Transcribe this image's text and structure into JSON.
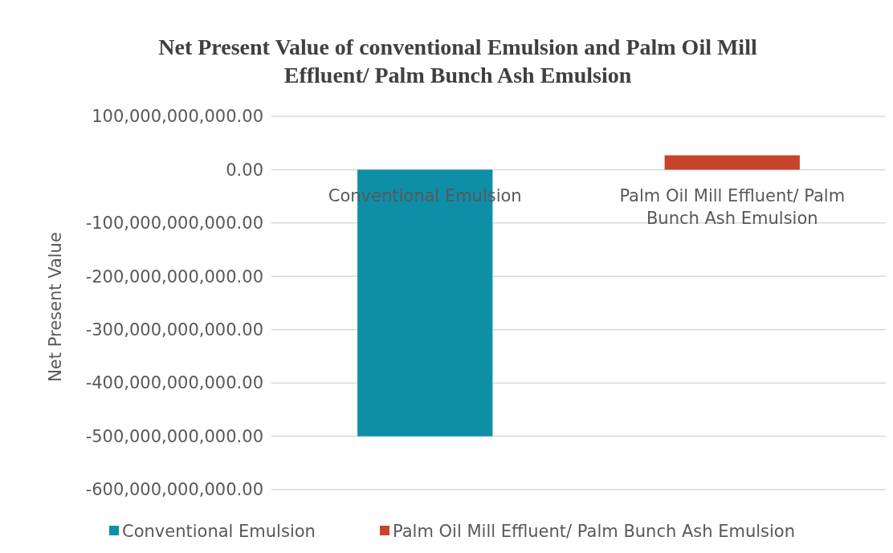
{
  "chart_data": {
    "type": "bar",
    "title": "Net Present Value of conventional Emulsion and Palm Oil Mill Effluent/ Palm Bunch Ash Emulsion",
    "ylabel": "Net Present Value",
    "categories": [
      "Conventional Emulsion",
      "Palm Oil Mill Effluent/ Palm Bunch Ash Emulsion"
    ],
    "series": [
      {
        "name": "Conventional Emulsion",
        "color": "#0f8ea8",
        "values": [
          -500000000000,
          null
        ]
      },
      {
        "name": "Palm Oil Mill Effluent/ Palm Bunch Ash Emulsion",
        "color": "#c8432a",
        "values": [
          null,
          27000000000
        ]
      }
    ],
    "ylim": [
      -600000000000,
      100000000000
    ],
    "yticks": [
      {
        "value": 100000000000,
        "label": "100,000,000,000.00"
      },
      {
        "value": 0,
        "label": "0.00"
      },
      {
        "value": -100000000000,
        "label": "-100,000,000,000.00"
      },
      {
        "value": -200000000000,
        "label": "-200,000,000,000.00"
      },
      {
        "value": -300000000000,
        "label": "-300,000,000,000.00"
      },
      {
        "value": -400000000000,
        "label": "-400,000,000,000.00"
      },
      {
        "value": -500000000000,
        "label": "-500,000,000,000.00"
      },
      {
        "value": -600000000000,
        "label": "-600,000,000,000.00"
      }
    ],
    "grid": true,
    "legend": "bottom"
  }
}
